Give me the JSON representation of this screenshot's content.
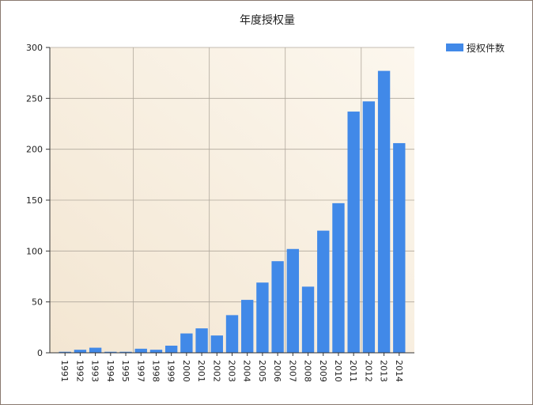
{
  "chart_data": {
    "type": "bar",
    "title": "年度授权量",
    "xlabel": "",
    "ylabel": "",
    "categories": [
      "1991",
      "1992",
      "1993",
      "1994",
      "1995",
      "1997",
      "1998",
      "1999",
      "2000",
      "2001",
      "2002",
      "2003",
      "2004",
      "2005",
      "2006",
      "2007",
      "2008",
      "2009",
      "2010",
      "2011",
      "2012",
      "2013",
      "2014"
    ],
    "series": [
      {
        "name": "授权件数",
        "values": [
          1,
          3,
          5,
          1,
          1,
          4,
          3,
          7,
          19,
          24,
          17,
          37,
          52,
          69,
          90,
          102,
          65,
          120,
          147,
          237,
          247,
          277,
          206
        ]
      }
    ],
    "ylim": [
      0,
      300
    ],
    "yticks": [
      0,
      50,
      100,
      150,
      200,
      250,
      300
    ],
    "grid": true,
    "legend_position": "top-right",
    "colors": {
      "bar": "#4189e8",
      "plot_bg_start": "#f3e6d2",
      "plot_bg_end": "#fcf7ee",
      "grid": "#b0a89c",
      "axis": "#333333"
    }
  }
}
